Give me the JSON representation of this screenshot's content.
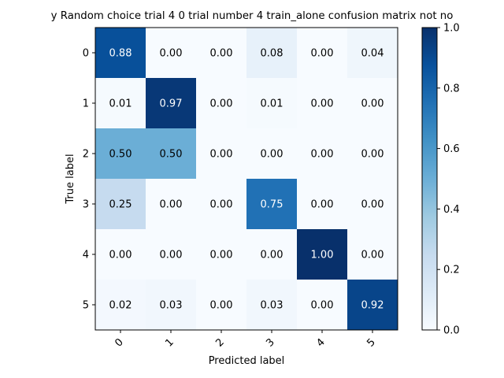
{
  "chart_data": {
    "type": "heatmap",
    "title": "y Random choice trial 4 0 trial number 4 train_alone confusion matrix not no",
    "xlabel": "Predicted label",
    "ylabel": "True label",
    "x_tick_labels": [
      "0",
      "1",
      "2",
      "3",
      "4",
      "5"
    ],
    "y_tick_labels": [
      "0",
      "1",
      "2",
      "3",
      "4",
      "5"
    ],
    "matrix": [
      [
        0.88,
        0.0,
        0.0,
        0.08,
        0.0,
        0.04
      ],
      [
        0.01,
        0.97,
        0.0,
        0.01,
        0.0,
        0.0
      ],
      [
        0.5,
        0.5,
        0.0,
        0.0,
        0.0,
        0.0
      ],
      [
        0.25,
        0.0,
        0.0,
        0.75,
        0.0,
        0.0
      ],
      [
        0.0,
        0.0,
        0.0,
        0.0,
        1.0,
        0.0
      ],
      [
        0.02,
        0.03,
        0.0,
        0.03,
        0.0,
        0.92
      ]
    ],
    "cell_labels": [
      [
        "0.88",
        "0.00",
        "0.00",
        "0.08",
        "0.00",
        "0.04"
      ],
      [
        "0.01",
        "0.97",
        "0.00",
        "0.01",
        "0.00",
        "0.00"
      ],
      [
        "0.50",
        "0.50",
        "0.00",
        "0.00",
        "0.00",
        "0.00"
      ],
      [
        "0.25",
        "0.00",
        "0.00",
        "0.75",
        "0.00",
        "0.00"
      ],
      [
        "0.00",
        "0.00",
        "0.00",
        "0.00",
        "1.00",
        "0.00"
      ],
      [
        "0.02",
        "0.03",
        "0.00",
        "0.03",
        "0.00",
        "0.92"
      ]
    ],
    "colorbar": {
      "colormap": "Blues",
      "range": [
        0.0,
        1.0
      ],
      "tick_labels": [
        "0.0",
        "0.2",
        "0.4",
        "0.6",
        "0.8",
        "1.0"
      ]
    },
    "colors": {
      "low": "#f7fbff",
      "high": "#08306b",
      "text_dark": "#000000",
      "text_light": "#ffffff"
    }
  }
}
